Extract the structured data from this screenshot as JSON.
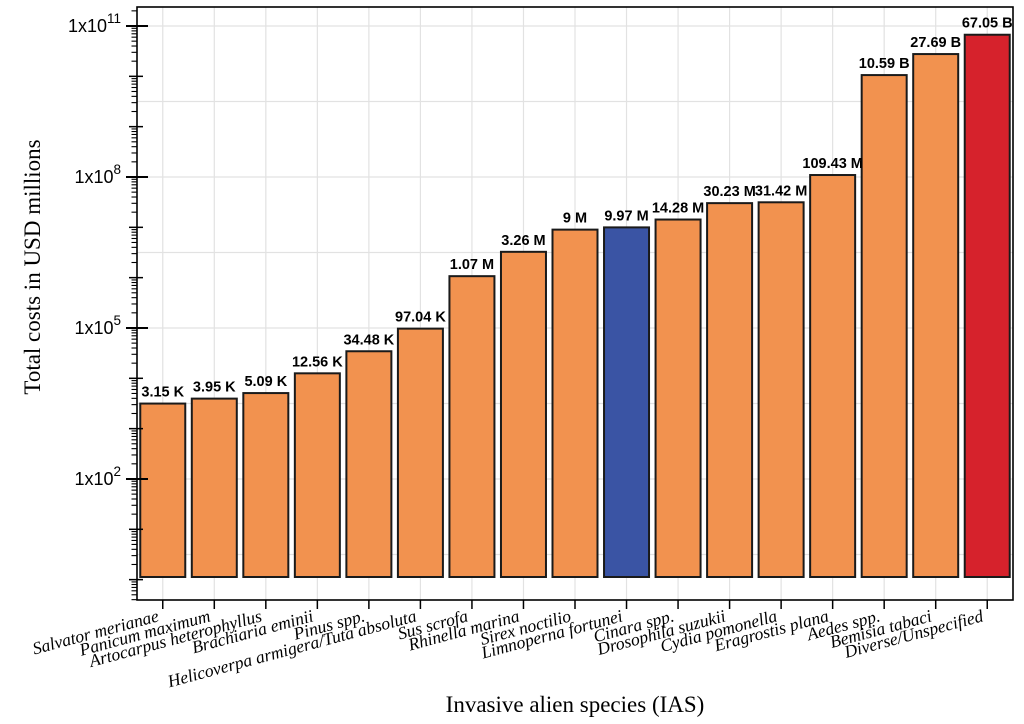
{
  "style": {
    "background": "#ffffff",
    "bar_default_color": "#F2924F",
    "bar_highlight_blue": "#3A54A4",
    "bar_highlight_red": "#D6222C",
    "bar_border_color": "#1a1a1a",
    "grid_color": "#E2E2E2",
    "axis_color": "#000000",
    "text_color": "#000000"
  },
  "chart_data": {
    "type": "bar",
    "title": "",
    "xlabel": "Invasive alien species (IAS)",
    "ylabel": "Total costs in USD millions",
    "y_scale": "log10",
    "grid": true,
    "ylim_log10": [
      -0.42,
      11.38
    ],
    "y_major_ticks": [
      {
        "mantissa": "1x10",
        "exponent": "11",
        "value": 100000000000
      },
      {
        "mantissa": "1x10",
        "exponent": "8",
        "value": 100000000
      },
      {
        "mantissa": "1x10",
        "exponent": "5",
        "value": 100000
      },
      {
        "mantissa": "1x10",
        "exponent": "2",
        "value": 100
      }
    ],
    "categories": [
      "Salvator merianae",
      "Panicum maximum",
      "Artocarpus heterophyllus",
      "Brachiaria eminii",
      "Pinus spp.",
      "Helicoverpa armigera/Tuta absoluta",
      "Sus scrofa",
      "Rhinella marina",
      "Sirex noctilio",
      "Limnoperna fortunei",
      "Cinara spp.",
      "Drosophila suzukii",
      "Cydia pomonella",
      "Eragrostis plana",
      "Aedes spp.",
      "Bemisia tabaci",
      "Diverse/Unspecified"
    ],
    "series": [
      {
        "name": "Total costs",
        "values": [
          3150,
          3950,
          5090,
          12560,
          34480,
          97040,
          1070000,
          3260000,
          9000000,
          9970000,
          14280000,
          30230000,
          31420000,
          109430000,
          10590000000,
          27690000000,
          67050000000
        ],
        "value_labels": [
          "3.15 K",
          "3.95 K",
          "5.09 K",
          "12.56 K",
          "34.48 K",
          "97.04 K",
          "1.07 M",
          "3.26 M",
          "9 M",
          "9.97 M",
          "14.28 M",
          "30.23 M",
          "31.42 M",
          "109.43 M",
          "10.59 B",
          "27.69 B",
          "67.05 B"
        ],
        "colors": [
          "#F2924F",
          "#F2924F",
          "#F2924F",
          "#F2924F",
          "#F2924F",
          "#F2924F",
          "#F2924F",
          "#F2924F",
          "#F2924F",
          "#3A54A4",
          "#F2924F",
          "#F2924F",
          "#F2924F",
          "#F2924F",
          "#F2924F",
          "#F2924F",
          "#D6222C"
        ]
      }
    ]
  }
}
